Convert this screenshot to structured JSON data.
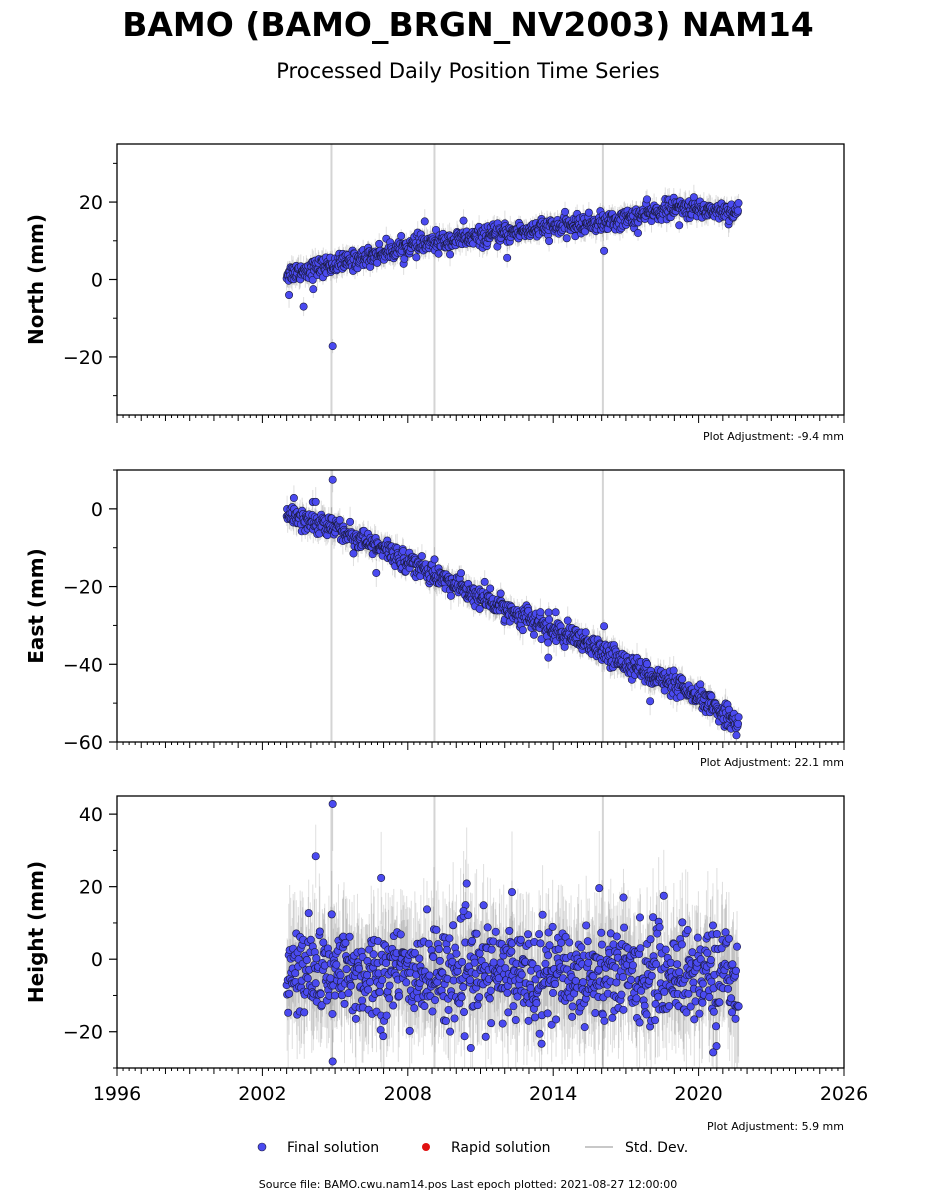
{
  "header": {
    "title": "BAMO (BAMO_BRGN_NV2003) NAM14",
    "subtitle": "Processed Daily Position Time Series"
  },
  "footer": {
    "source": "Source file: BAMO.cwu.nam14.pos  Last epoch plotted: 2021-08-27 12:00:00"
  },
  "legend": {
    "position": "bottom",
    "items": [
      {
        "label": "Final solution",
        "color": "#4a4af0"
      },
      {
        "label": "Rapid solution",
        "color": "#e01010"
      },
      {
        "label": "Std. Dev.",
        "color": "#c8c8c8"
      }
    ]
  },
  "chart_data": [
    {
      "type": "scatter",
      "ylabel": "North (mm)",
      "adjustment": "Plot Adjustment: -9.4 mm",
      "xlim": [
        1996,
        2026
      ],
      "ylim": [
        -35,
        35
      ],
      "yticks": [
        -20,
        0,
        20
      ],
      "xticks": [
        1996,
        2002,
        2008,
        2014,
        2020,
        2026
      ],
      "event_lines": [
        2004.85,
        2009.1,
        2016.05
      ],
      "start": 2003.0,
      "end": 2021.65,
      "trend": [
        [
          2003.0,
          1.5
        ],
        [
          2005.5,
          4.5
        ],
        [
          2008.0,
          8.5
        ],
        [
          2011.0,
          11.0
        ],
        [
          2014.0,
          13.5
        ],
        [
          2016.5,
          15.0
        ],
        [
          2019.0,
          18.5
        ],
        [
          2021.65,
          17.5
        ]
      ],
      "noise": 1.2,
      "outliers": [
        [
          2003.1,
          -4
        ],
        [
          2003.7,
          -7
        ],
        [
          2004.1,
          -2.5
        ],
        [
          2004.9,
          -17.2
        ],
        [
          2008.7,
          15
        ],
        [
          2010.3,
          15.2
        ],
        [
          2012.1,
          5.6
        ],
        [
          2016.1,
          7.4
        ],
        [
          2017.5,
          12
        ],
        [
          2019.2,
          14
        ]
      ]
    },
    {
      "type": "scatter",
      "ylabel": "East (mm)",
      "adjustment": "Plot Adjustment: 22.1 mm",
      "xlim": [
        1996,
        2026
      ],
      "ylim": [
        -60,
        10
      ],
      "yticks": [
        -60,
        -40,
        -20,
        0
      ],
      "xticks": [
        1996,
        2002,
        2008,
        2014,
        2020,
        2026
      ],
      "event_lines": [
        2004.85,
        2009.1,
        2016.05
      ],
      "start": 2003.0,
      "end": 2021.65,
      "trend": [
        [
          2003.0,
          -1.0
        ],
        [
          2005.0,
          -5.0
        ],
        [
          2007.0,
          -10.5
        ],
        [
          2009.0,
          -16.5
        ],
        [
          2011.0,
          -23.0
        ],
        [
          2013.0,
          -28.5
        ],
        [
          2015.0,
          -34.0
        ],
        [
          2017.0,
          -39.5
        ],
        [
          2019.0,
          -45.5
        ],
        [
          2020.5,
          -50.5
        ],
        [
          2021.65,
          -55.0
        ]
      ],
      "noise": 1.4,
      "outliers": [
        [
          2004.9,
          7.5
        ],
        [
          2004.2,
          1.8
        ],
        [
          2003.3,
          2.8
        ],
        [
          2006.7,
          -16.5
        ],
        [
          2009.1,
          -13
        ],
        [
          2011.4,
          -20.5
        ],
        [
          2014.1,
          -26.6
        ],
        [
          2013.8,
          -38.3
        ],
        [
          2016.1,
          -30.2
        ],
        [
          2018.0,
          -49.5
        ]
      ]
    },
    {
      "type": "scatter",
      "ylabel": "Height (mm)",
      "adjustment": "Plot Adjustment: 5.9 mm",
      "xlim": [
        1996,
        2026
      ],
      "ylim": [
        -30,
        45
      ],
      "yticks": [
        -20,
        0,
        20,
        40
      ],
      "xticks": [
        1996,
        2002,
        2008,
        2014,
        2020,
        2026
      ],
      "xticklabels": [
        "1996",
        "2002",
        "2008",
        "2014",
        "2020",
        "2026"
      ],
      "event_lines": [
        2004.85,
        2009.1,
        2016.05
      ],
      "start": 2003.0,
      "end": 2021.65,
      "trend": [
        [
          2003.0,
          -4.0
        ],
        [
          2012.0,
          -4.0
        ],
        [
          2021.65,
          -4.0
        ]
      ],
      "noise": 6.5,
      "outliers": [
        [
          2004.9,
          42.8
        ],
        [
          2004.2,
          28.4
        ],
        [
          2006.9,
          22.4
        ],
        [
          2012.3,
          18.5
        ],
        [
          2015.9,
          19.6
        ],
        [
          2004.9,
          -28.2
        ],
        [
          2010.6,
          -24.5
        ],
        [
          2020.6,
          -25.7
        ],
        [
          2010.3,
          13.3
        ],
        [
          2016.9,
          17
        ]
      ]
    }
  ]
}
